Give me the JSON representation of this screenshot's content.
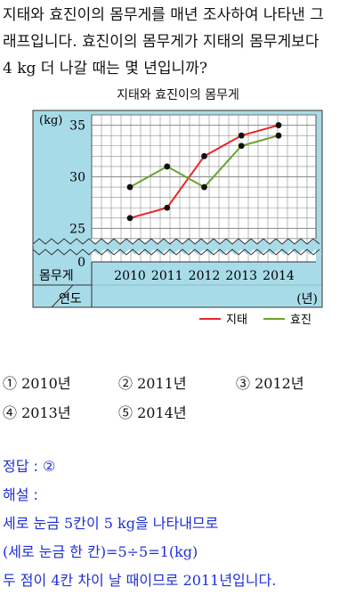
{
  "question": {
    "line1": "지태와 효진이의 몸무게를 매년 조사하여 나타낸 그",
    "line2": "래프입니다. 효진이의 몸무게가 지태의 몸무게보다",
    "line3": "4 kg 더 나갈 때는 몇 년입니까?"
  },
  "chart_data": {
    "type": "line",
    "title": "지태와 효진이의 몸무게",
    "x": [
      "2010",
      "2011",
      "2012",
      "2013",
      "2014"
    ],
    "y_unit": "(kg)",
    "x_unit": "(년)",
    "y_ticks": [
      0,
      25,
      30,
      35
    ],
    "ylim": [
      24,
      36
    ],
    "y_break": true,
    "grid": true,
    "corner_label_top": "몸무게",
    "corner_label_bottom": "연도",
    "series": [
      {
        "name": "지태",
        "color": "#e8262a",
        "values": [
          26,
          27,
          32,
          34,
          35
        ]
      },
      {
        "name": "효진",
        "color": "#6aa329",
        "values": [
          29,
          31,
          29,
          33,
          34
        ]
      }
    ],
    "legend_position": "bottom-right"
  },
  "options": [
    {
      "num": "①",
      "label": "2010년"
    },
    {
      "num": "②",
      "label": "2011년"
    },
    {
      "num": "③",
      "label": "2012년"
    },
    {
      "num": "④",
      "label": "2013년"
    },
    {
      "num": "⑤",
      "label": "2014년"
    }
  ],
  "answer": {
    "line1": "정답 : ②",
    "line2": "해설 :",
    "line3": "세로 눈금 5칸이 5 kg을 나타내므로",
    "line4": "(세로 눈금 한 칸)=5÷5=1(kg)",
    "line5": "두 점이 4칸 차이 날 때이므로 2011년입니다."
  },
  "colors": {
    "panel": "#a8dbe8",
    "plot": "#ffffff",
    "grid": "#8a8a8a",
    "answer": "#1f2fd6"
  }
}
